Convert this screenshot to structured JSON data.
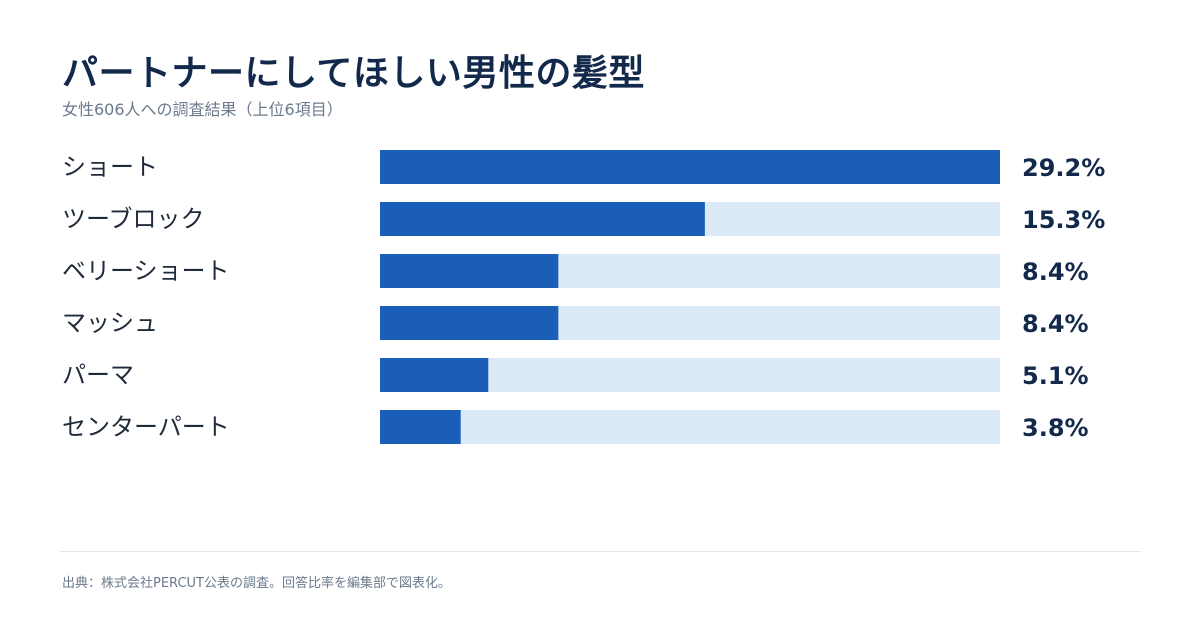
{
  "header": {
    "title": "パートナーにしてほしい男性の髪型",
    "subtitle": "女性606人への調査結果（上位6項目）"
  },
  "footer": {
    "source": "出典：株式会社PERCUT公表の調査。回答比率を編集部で図表化。"
  },
  "colors": {
    "bar": "#1a5eb8",
    "track": "#dceaf8",
    "label": "#1f2a3a",
    "value": "#13294b"
  },
  "chart_data": {
    "type": "bar",
    "orientation": "horizontal",
    "categories": [
      "ショート",
      "ツーブロック",
      "ベリーショート",
      "マッシュ",
      "パーマ",
      "センターパート"
    ],
    "values": [
      29.2,
      15.3,
      8.4,
      8.4,
      5.1,
      3.8
    ],
    "value_labels": [
      "29.2%",
      "15.3%",
      "8.4%",
      "8.4%",
      "5.1%",
      "3.8%"
    ],
    "xlim": [
      0,
      29.2
    ],
    "unit": "%",
    "grid": false,
    "legend": "none"
  }
}
